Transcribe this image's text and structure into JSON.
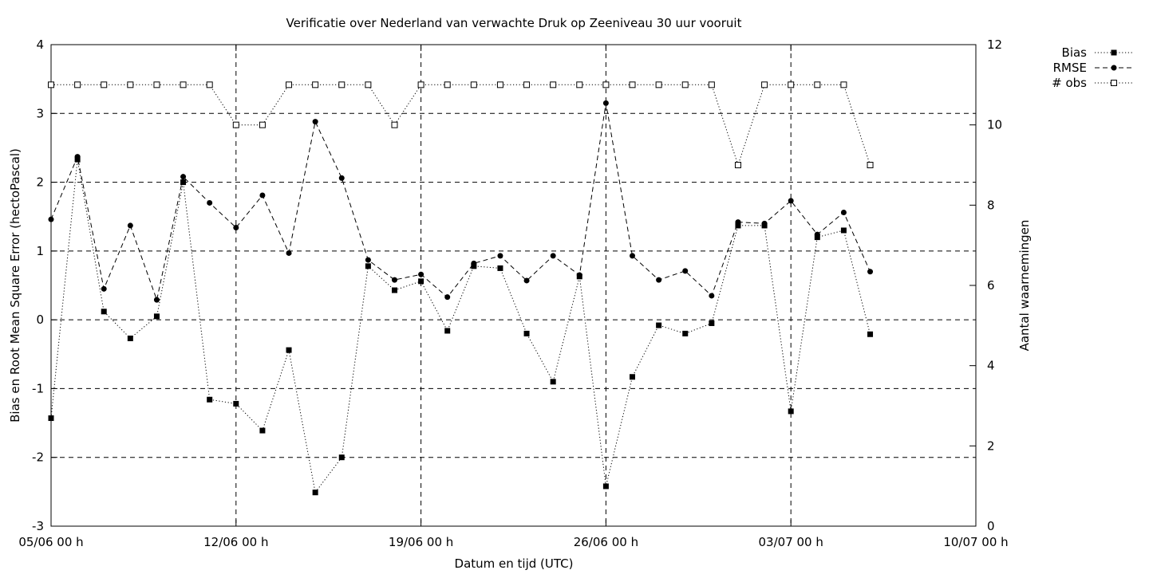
{
  "chart_data": {
    "type": "line",
    "title": "Verificatie over Nederland van verwachte Druk op Zeeniveau 30 uur vooruit",
    "xlabel": "Datum en tijd (UTC)",
    "ylabel": "Bias en Root Mean Square Error (hectoPascal)",
    "y2label": "Aantal waarnemingen",
    "x_unit": "day",
    "xlim": [
      0,
      35
    ],
    "ylim": [
      -3,
      4
    ],
    "y2lim": [
      0,
      12
    ],
    "x_ticks": [
      {
        "x": 0,
        "label": "05/06 00 h"
      },
      {
        "x": 7,
        "label": "12/06 00 h"
      },
      {
        "x": 14,
        "label": "19/06 00 h"
      },
      {
        "x": 21,
        "label": "26/06 00 h"
      },
      {
        "x": 28,
        "label": "03/07 00 h"
      },
      {
        "x": 35,
        "label": "10/07 00 h"
      }
    ],
    "y_ticks": [
      "-3",
      "-2",
      "-1",
      "0",
      "1",
      "2",
      "3",
      "4"
    ],
    "y2_ticks": [
      "0",
      "2",
      "4",
      "6",
      "8",
      "10",
      "12"
    ],
    "grid": "dashed, at labelled ticks",
    "legend_position": "top-right outside plot",
    "x": [
      0,
      1,
      2,
      3,
      4,
      5,
      6,
      7,
      8,
      9,
      10,
      11,
      12,
      13,
      14,
      15,
      16,
      17,
      18,
      19,
      20,
      21,
      22,
      23,
      24,
      25,
      26,
      27,
      28,
      29,
      30,
      31
    ],
    "series": [
      {
        "name": "Bias",
        "axis": "left",
        "line_style": "dotted",
        "marker": "filled-square",
        "values": [
          -1.43,
          2.33,
          0.12,
          -0.27,
          0.05,
          2.0,
          -1.16,
          -1.22,
          -1.61,
          -0.44,
          -2.51,
          -2.0,
          0.78,
          0.43,
          0.56,
          -0.16,
          0.78,
          0.75,
          -0.2,
          -0.9,
          0.63,
          -2.42,
          -0.83,
          -0.08,
          -0.2,
          -0.05,
          1.37,
          1.37,
          -1.33,
          1.2,
          1.3,
          -0.21
        ]
      },
      {
        "name": "RMSE",
        "axis": "left",
        "line_style": "dashed",
        "marker": "filled-circle",
        "values": [
          1.46,
          2.37,
          0.45,
          1.37,
          0.29,
          2.08,
          1.7,
          1.34,
          1.81,
          0.97,
          2.88,
          2.06,
          0.87,
          0.58,
          0.66,
          0.33,
          0.82,
          0.93,
          0.57,
          0.93,
          0.65,
          3.15,
          0.93,
          0.58,
          0.71,
          0.35,
          1.42,
          1.4,
          1.73,
          1.24,
          1.56,
          0.7
        ]
      },
      {
        "name": "# obs",
        "axis": "right",
        "line_style": "dotted",
        "marker": "open-square",
        "values": [
          11,
          11,
          11,
          11,
          11,
          11,
          11,
          10,
          10,
          11,
          11,
          11,
          11,
          10,
          11,
          11,
          11,
          11,
          11,
          11,
          11,
          11,
          11,
          11,
          11,
          11,
          9,
          11,
          11,
          11,
          11,
          9
        ]
      }
    ]
  }
}
